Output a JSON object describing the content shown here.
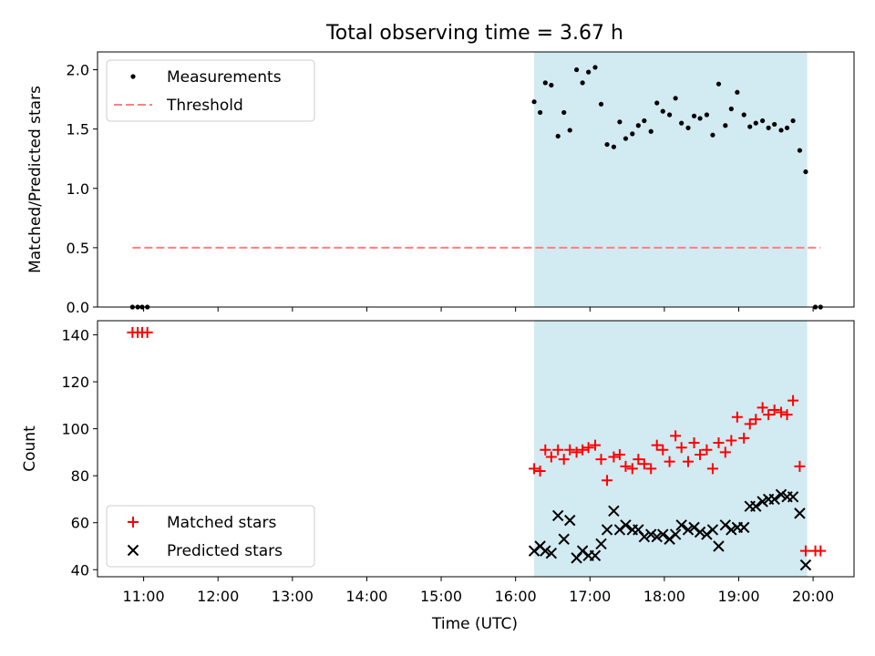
{
  "chart_data": {
    "title": "Total observing time = 3.67 h",
    "x_tick_labels": [
      "11:00",
      "12:00",
      "13:00",
      "14:00",
      "15:00",
      "16:00",
      "17:00",
      "18:00",
      "19:00",
      "20:00"
    ],
    "xlabel": "Time (UTC)",
    "observing_window_hours": [
      16.25,
      19.92
    ],
    "observing_window_color": "#add8e6",
    "panels": [
      {
        "type": "scatter",
        "ylabel": "Matched/Predicted stars",
        "xlim_hours": [
          10.38,
          20.55
        ],
        "ylim": [
          0,
          2.15
        ],
        "yticks": [
          0.0,
          0.5,
          1.0,
          1.5,
          2.0
        ],
        "ytick_labels": [
          "0.0",
          "0.5",
          "1.0",
          "1.5",
          "2.0"
        ],
        "legend_position": "top-left",
        "series": [
          {
            "name": "Measurements",
            "marker": "dot",
            "color": "#000000",
            "x_hours": [
              10.85,
              10.92,
              10.98,
              11.05,
              16.25,
              16.33,
              16.4,
              16.48,
              16.57,
              16.65,
              16.73,
              16.82,
              16.9,
              16.98,
              17.07,
              17.15,
              17.23,
              17.32,
              17.4,
              17.48,
              17.57,
              17.65,
              17.73,
              17.82,
              17.9,
              17.98,
              18.07,
              18.15,
              18.23,
              18.32,
              18.4,
              18.48,
              18.57,
              18.65,
              18.73,
              18.82,
              18.9,
              18.98,
              19.07,
              19.15,
              19.23,
              19.32,
              19.4,
              19.48,
              19.57,
              19.65,
              19.73,
              19.82,
              19.9,
              20.03,
              20.1
            ],
            "values": [
              0,
              0,
              0,
              0,
              1.73,
              1.64,
              1.89,
              1.87,
              1.44,
              1.64,
              1.49,
              2.0,
              1.89,
              1.98,
              2.02,
              1.71,
              1.37,
              1.35,
              1.56,
              1.42,
              1.46,
              1.53,
              1.57,
              1.48,
              1.72,
              1.65,
              1.62,
              1.76,
              1.55,
              1.51,
              1.61,
              1.59,
              1.62,
              1.45,
              1.88,
              1.53,
              1.67,
              1.81,
              1.62,
              1.52,
              1.55,
              1.57,
              1.51,
              1.54,
              1.49,
              1.51,
              1.57,
              1.32,
              1.14,
              0,
              0
            ]
          },
          {
            "name": "Threshold",
            "marker": "dashed-line",
            "color": "#ff7f7f",
            "x_hours": [
              10.85,
              20.1
            ],
            "values": [
              0.5,
              0.5
            ]
          }
        ]
      },
      {
        "type": "scatter",
        "ylabel": "Count",
        "xlim_hours": [
          10.38,
          20.55
        ],
        "ylim": [
          37,
          146
        ],
        "yticks": [
          40,
          60,
          80,
          100,
          120,
          140
        ],
        "ytick_labels": [
          "40",
          "60",
          "80",
          "100",
          "120",
          "140"
        ],
        "legend_position": "bottom-left",
        "series": [
          {
            "name": "Matched stars",
            "marker": "plus",
            "color": "#ff0000",
            "x_hours": [
              10.85,
              10.92,
              10.98,
              11.05,
              16.25,
              16.33,
              16.4,
              16.48,
              16.57,
              16.65,
              16.73,
              16.82,
              16.9,
              16.98,
              17.07,
              17.15,
              17.23,
              17.32,
              17.4,
              17.48,
              17.57,
              17.65,
              17.73,
              17.82,
              17.9,
              17.98,
              18.07,
              18.15,
              18.23,
              18.32,
              18.4,
              18.48,
              18.57,
              18.65,
              18.73,
              18.82,
              18.9,
              18.98,
              19.07,
              19.15,
              19.23,
              19.32,
              19.4,
              19.48,
              19.57,
              19.65,
              19.73,
              19.82,
              19.9,
              20.03,
              20.1
            ],
            "values": [
              141,
              141,
              141,
              141,
              83,
              82,
              91,
              88,
              91,
              87,
              91,
              90,
              91,
              92,
              93,
              87,
              78,
              88,
              89,
              84,
              83,
              87,
              85,
              83,
              93,
              91,
              86,
              97,
              92,
              86,
              94,
              89,
              91,
              83,
              94,
              90,
              95,
              105,
              96,
              102,
              104,
              109,
              106,
              108,
              107,
              106,
              112,
              84,
              48,
              48,
              48
            ]
          },
          {
            "name": "Predicted stars",
            "marker": "x",
            "color": "#000000",
            "x_hours": [
              16.25,
              16.33,
              16.4,
              16.48,
              16.57,
              16.65,
              16.73,
              16.82,
              16.9,
              16.98,
              17.07,
              17.15,
              17.23,
              17.32,
              17.4,
              17.48,
              17.57,
              17.65,
              17.73,
              17.82,
              17.9,
              17.98,
              18.07,
              18.15,
              18.23,
              18.32,
              18.4,
              18.48,
              18.57,
              18.65,
              18.73,
              18.82,
              18.9,
              18.98,
              19.07,
              19.15,
              19.23,
              19.32,
              19.4,
              19.48,
              19.57,
              19.65,
              19.73,
              19.82,
              19.9
            ],
            "values": [
              48,
              50,
              48,
              47,
              63,
              53,
              61,
              45,
              48,
              46,
              46,
              51,
              57,
              65,
              57,
              59,
              57,
              57,
              54,
              55,
              54,
              55,
              53,
              55,
              59,
              57,
              58,
              56,
              55,
              57,
              50,
              59,
              57,
              58,
              58,
              67,
              67,
              69,
              70,
              70,
              72,
              71,
              71,
              64,
              42
            ]
          }
        ]
      }
    ]
  }
}
